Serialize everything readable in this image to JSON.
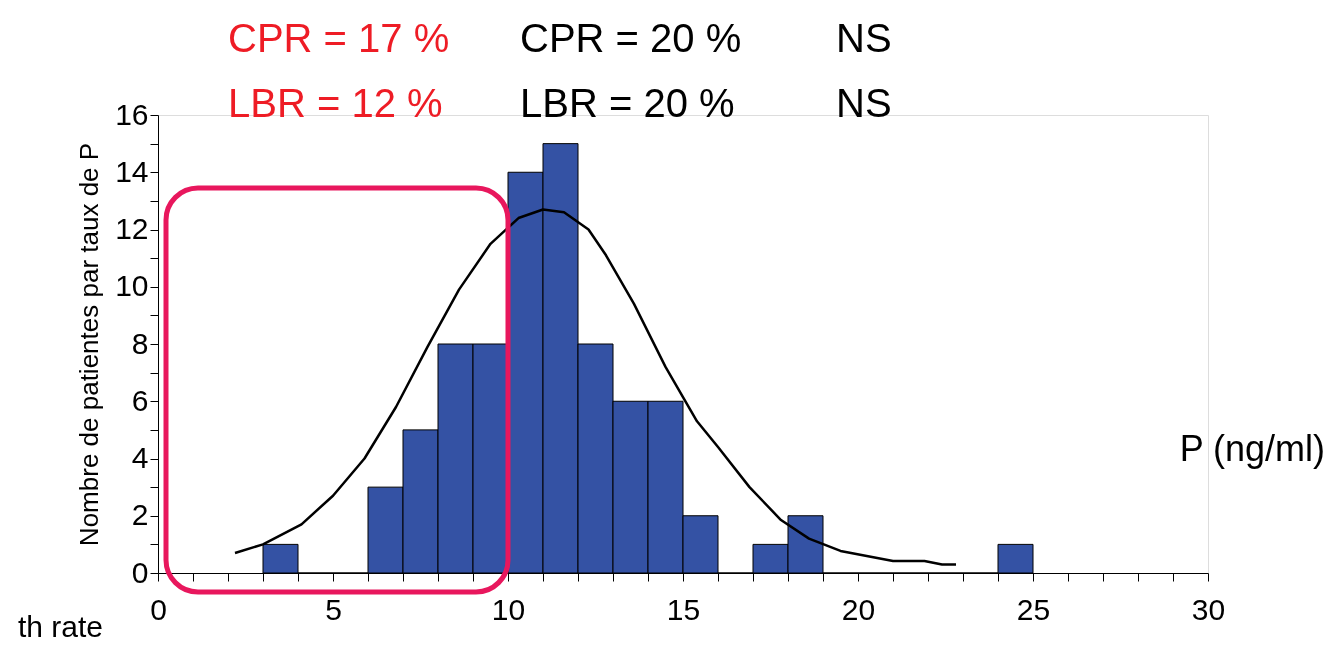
{
  "chart_data": {
    "type": "histogram",
    "xlabel": "P (ng/ml)",
    "ylabel": "Nombre de patientes par taux de P",
    "bins": [
      3,
      4,
      5,
      6,
      7,
      8,
      9,
      10,
      11,
      12,
      13,
      14,
      15,
      16,
      17,
      18,
      19,
      20,
      21,
      22,
      23,
      24,
      25
    ],
    "values": [
      1,
      0,
      0,
      3,
      5,
      8,
      8,
      14,
      15,
      8,
      6,
      6,
      2,
      0,
      1,
      2,
      0,
      0,
      0,
      0,
      0,
      1
    ],
    "color": "#3452a4",
    "series": [
      {
        "type": "line",
        "color": "#000000",
        "x": [
          2.2,
          3,
          4.1,
          5,
          5.9,
          6.8,
          7.7,
          8.6,
          9.5,
          10.3,
          11,
          11.6,
          12.3,
          12.8,
          13.6,
          14.5,
          15.4,
          16,
          16.9,
          17.8,
          18.6,
          19.5,
          21,
          21.9,
          22.4,
          22.8
        ],
        "values": [
          0.7,
          1.0,
          1.7,
          2.7,
          4.0,
          5.8,
          7.9,
          9.9,
          11.5,
          12.4,
          12.7,
          12.6,
          12.0,
          11.1,
          9.4,
          7.2,
          5.3,
          4.4,
          3.0,
          1.85,
          1.2,
          0.77,
          0.42,
          0.42,
          0.3,
          0.3
        ]
      }
    ],
    "xlim": [
      0,
      30
    ],
    "xticks": [
      0,
      {
        "value": 1,
        "label": null
      },
      {
        "value": 2,
        "label": null
      },
      {
        "value": 3,
        "label": null
      },
      {
        "value": 4,
        "label": null
      },
      5,
      {
        "value": 6,
        "label": null
      },
      {
        "value": 7,
        "label": null
      },
      {
        "value": 8,
        "label": null
      },
      {
        "value": 9,
        "label": null
      },
      10,
      {
        "value": 11,
        "label": null
      },
      {
        "value": 12,
        "label": null
      },
      {
        "value": 13,
        "label": null
      },
      {
        "value": 14,
        "label": null
      },
      15,
      {
        "value": 16,
        "label": null
      },
      {
        "value": 17,
        "label": null
      },
      {
        "value": 18,
        "label": null
      },
      {
        "value": 19,
        "label": null
      },
      20,
      {
        "value": 21,
        "label": null
      },
      {
        "value": 22,
        "label": null
      },
      {
        "value": 23,
        "label": null
      },
      {
        "value": 24,
        "label": null
      },
      25,
      {
        "value": 26,
        "label": null
      },
      {
        "value": 27,
        "label": null
      },
      {
        "value": 28,
        "label": null
      },
      {
        "value": 29,
        "label": null
      },
      30
    ],
    "ylim": [
      0,
      16
    ],
    "yticks": [
      0,
      {
        "value": 1,
        "label": null
      },
      2,
      {
        "value": 3,
        "label": null
      },
      4,
      {
        "value": 5,
        "label": null
      },
      6,
      {
        "value": 7,
        "label": null
      },
      8,
      {
        "value": 9,
        "label": null
      },
      10,
      {
        "value": 11,
        "label": null
      },
      12,
      {
        "value": 13,
        "label": null
      },
      14,
      {
        "value": 15,
        "label": null
      },
      16
    ],
    "annotations": [
      "CPR = 17 %",
      "CPR = 20 %",
      "NS",
      "LBR = 12 %",
      "LBR = 20 %",
      "NS",
      "th rate"
    ]
  }
}
